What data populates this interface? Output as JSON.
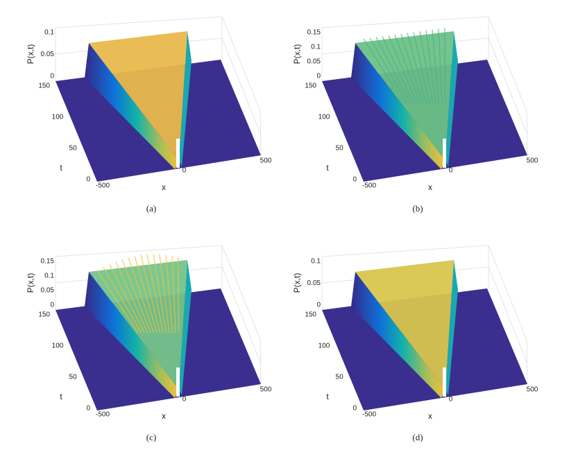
{
  "panels": [
    {
      "caption": "(a)",
      "z_label": "P(x,t)",
      "t_label": "t",
      "x_label": "x",
      "z_ticks": [
        0,
        0.05,
        0.1
      ],
      "t_ticks": [
        0,
        50,
        100,
        150
      ],
      "x_ticks": [
        -500,
        0,
        500
      ]
    },
    {
      "caption": "(b)",
      "z_label": "P(x,t)",
      "t_label": "t",
      "x_label": "x",
      "z_ticks": [
        0,
        0.05,
        0.1,
        0.15
      ],
      "t_ticks": [
        0,
        50,
        100,
        150
      ],
      "x_ticks": [
        -500,
        0,
        500
      ]
    },
    {
      "caption": "(c)",
      "z_label": "P(x,t)",
      "t_label": "t",
      "x_label": "x",
      "z_ticks": [
        0,
        0.05,
        0.1,
        0.15
      ],
      "t_ticks": [
        0,
        50,
        100,
        150
      ],
      "x_ticks": [
        -500,
        0,
        500
      ]
    },
    {
      "caption": "(d)",
      "z_label": "P(x,t)",
      "t_label": "t",
      "x_label": "x",
      "z_ticks": [
        0,
        0.05,
        0.1
      ],
      "t_ticks": [
        0,
        50,
        100,
        150
      ],
      "x_ticks": [
        -500,
        0,
        500
      ]
    }
  ]
}
